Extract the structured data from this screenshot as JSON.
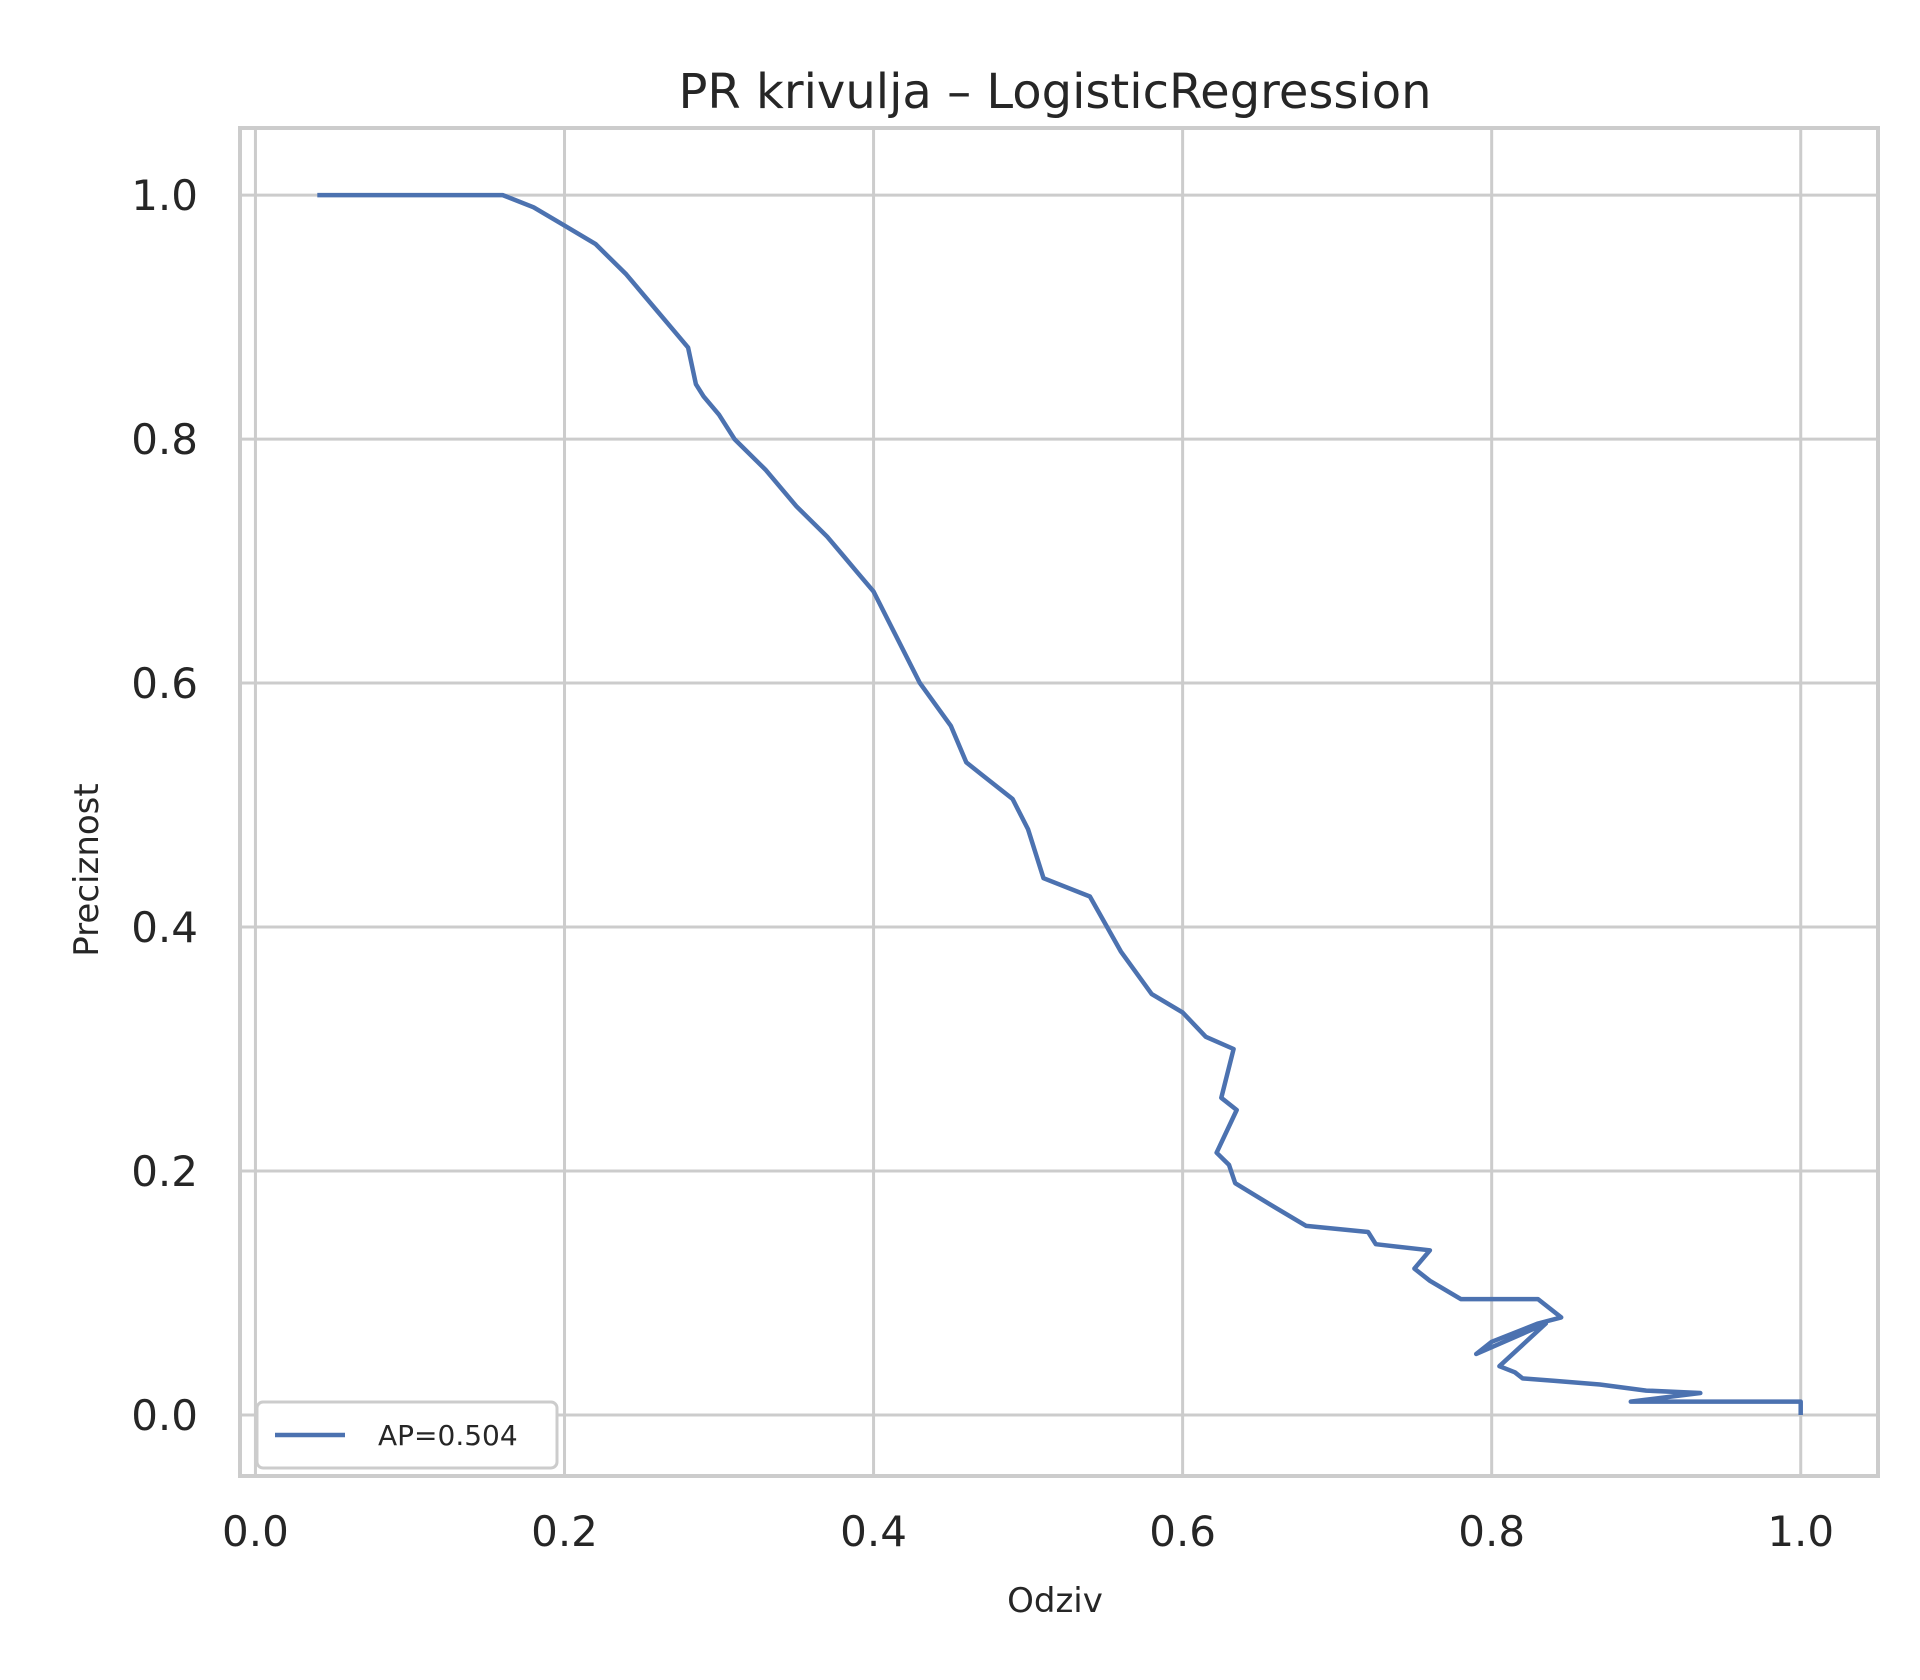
{
  "colors": {
    "series": "#4c72b0",
    "grid": "#cccccc",
    "text": "#262626",
    "background": "#ffffff"
  },
  "chart_data": {
    "type": "line",
    "title": "PR krivulja – LogisticRegression",
    "xlabel": "Odziv",
    "ylabel": "Preciznost",
    "xlim": [
      -0.01,
      1.05
    ],
    "ylim": [
      -0.05,
      1.055
    ],
    "xticks": [
      0.0,
      0.2,
      0.4,
      0.6,
      0.8,
      1.0
    ],
    "yticks": [
      0.0,
      0.2,
      0.4,
      0.6,
      0.8,
      1.0
    ],
    "xtick_labels": [
      "0.0",
      "0.2",
      "0.4",
      "0.6",
      "0.8",
      "1.0"
    ],
    "ytick_labels": [
      "0.0",
      "0.2",
      "0.4",
      "0.6",
      "0.8",
      "1.0"
    ],
    "grid": true,
    "legend": {
      "position": "lower-left",
      "entries": [
        "AP=0.504"
      ]
    },
    "series": [
      {
        "name": "AP=0.504",
        "x": [
          0.04,
          0.16,
          0.18,
          0.2,
          0.22,
          0.24,
          0.26,
          0.27,
          0.28,
          0.285,
          0.29,
          0.3,
          0.31,
          0.33,
          0.35,
          0.37,
          0.38,
          0.39,
          0.4,
          0.41,
          0.43,
          0.45,
          0.46,
          0.47,
          0.49,
          0.5,
          0.51,
          0.54,
          0.56,
          0.58,
          0.6,
          0.615,
          0.633,
          0.625,
          0.635,
          0.622,
          0.63,
          0.634,
          0.66,
          0.68,
          0.72,
          0.725,
          0.76,
          0.75,
          0.76,
          0.78,
          0.83,
          0.845,
          0.83,
          0.8,
          0.79,
          0.835,
          0.805,
          0.815,
          0.82,
          0.84,
          0.87,
          0.9,
          0.935,
          0.89,
          0.93,
          1.0,
          1.0
        ],
        "y": [
          1.0,
          1.0,
          0.99,
          0.975,
          0.96,
          0.935,
          0.905,
          0.89,
          0.875,
          0.845,
          0.835,
          0.82,
          0.8,
          0.775,
          0.745,
          0.72,
          0.705,
          0.69,
          0.675,
          0.65,
          0.6,
          0.565,
          0.535,
          0.525,
          0.505,
          0.48,
          0.44,
          0.425,
          0.38,
          0.345,
          0.33,
          0.31,
          0.3,
          0.26,
          0.25,
          0.215,
          0.205,
          0.19,
          0.17,
          0.155,
          0.15,
          0.14,
          0.135,
          0.12,
          0.11,
          0.095,
          0.095,
          0.08,
          0.075,
          0.06,
          0.05,
          0.075,
          0.04,
          0.035,
          0.03,
          0.028,
          0.025,
          0.02,
          0.018,
          0.011,
          0.011,
          0.011,
          0.0
        ]
      }
    ]
  }
}
